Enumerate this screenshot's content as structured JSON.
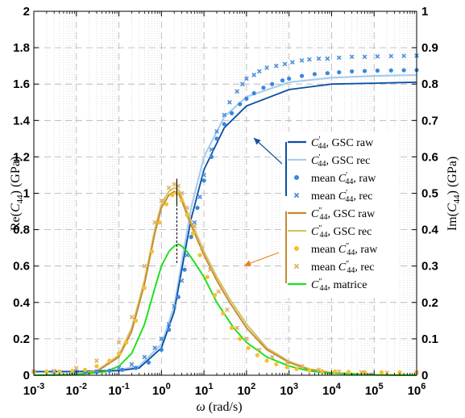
{
  "chart_data": {
    "type": "line",
    "xscale": "log",
    "xlim": [
      0.001,
      1000000
    ],
    "ylim_left": [
      0,
      2
    ],
    "ylim_right": [
      0,
      1
    ],
    "grid": true,
    "xlabel": "ω (rad/s)",
    "ylabel_left": "Re(C44) (GPa)",
    "ylabel_right": "Im(C44) (GPa)",
    "x_tick_labels": [
      "10^-3",
      "10^-2",
      "10^-1",
      "10^0",
      "10^1",
      "10^2",
      "10^3",
      "10^4",
      "10^5",
      "10^6"
    ],
    "y_left_tick_labels": [
      "0",
      "0.2",
      "0.4",
      "0.6",
      "0.8",
      "1",
      "1.2",
      "1.4",
      "1.6",
      "1.8",
      "2"
    ],
    "y_right_tick_labels": [
      "0",
      "0.1",
      "0.2",
      "0.3",
      "0.4",
      "0.5",
      "0.6",
      "0.7",
      "0.8",
      "0.9",
      "1"
    ],
    "legend_position": "right",
    "colors": {
      "storage_raw": "#0b4fa3",
      "storage_rec": "#a9cdf0",
      "storage_mean_raw": "#3a86e0",
      "storage_mean_rec": "#4d8fd8",
      "loss_raw": "#c48a2e",
      "loss_rec": "#d6c36a",
      "loss_mean_raw": "#f2c12e",
      "loss_mean_rec": "#dfb06a",
      "matrice": "#22e01e",
      "arrow_blue": "#1a4f9a",
      "arrow_orange": "#e8821e"
    },
    "series": [
      {
        "key": "storage_raw",
        "name": "C′44, GSC raw",
        "axis": "left",
        "style": "line",
        "x": [
          0.001,
          0.01,
          0.1,
          0.3,
          1,
          2,
          3,
          5,
          10,
          30,
          100,
          1000,
          10000,
          100000,
          1000000
        ],
        "y": [
          0.02,
          0.02,
          0.025,
          0.04,
          0.15,
          0.35,
          0.58,
          0.86,
          1.13,
          1.36,
          1.48,
          1.57,
          1.6,
          1.605,
          1.61
        ]
      },
      {
        "key": "storage_rec",
        "name": "C′44, GSC rec",
        "axis": "left",
        "style": "line",
        "x": [
          0.001,
          0.01,
          0.1,
          0.3,
          1,
          2,
          3,
          5,
          10,
          30,
          100,
          1000,
          10000,
          100000,
          1000000
        ],
        "y": [
          0.02,
          0.02,
          0.03,
          0.05,
          0.17,
          0.38,
          0.62,
          0.92,
          1.2,
          1.42,
          1.53,
          1.61,
          1.635,
          1.645,
          1.65
        ]
      },
      {
        "key": "storage_mean_raw",
        "name": "mean C′44, raw",
        "axis": "left",
        "style": "dot",
        "x": [
          0.001,
          0.002,
          0.004,
          0.008,
          0.016,
          0.03,
          0.06,
          0.12,
          0.25,
          0.5,
          1,
          1.5,
          2.5,
          3.5,
          5,
          7,
          10,
          15,
          20,
          30,
          45,
          70,
          100,
          150,
          250,
          400,
          700,
          1000,
          2000,
          4000,
          8000,
          15000,
          30000,
          60000,
          120000,
          250000,
          500000,
          1000000
        ],
        "y": [
          0.02,
          0.02,
          0.02,
          0.02,
          0.02,
          0.02,
          0.025,
          0.03,
          0.04,
          0.07,
          0.14,
          0.25,
          0.43,
          0.58,
          0.76,
          0.92,
          1.07,
          1.2,
          1.3,
          1.38,
          1.44,
          1.49,
          1.52,
          1.55,
          1.58,
          1.6,
          1.62,
          1.63,
          1.645,
          1.655,
          1.66,
          1.665,
          1.67,
          1.672,
          1.674,
          1.675,
          1.676,
          1.677
        ]
      },
      {
        "key": "storage_mean_rec",
        "name": "mean C′44, rec",
        "axis": "left",
        "style": "cross",
        "x": [
          0.001,
          0.003,
          0.01,
          0.03,
          0.1,
          0.2,
          0.4,
          0.7,
          1,
          1.5,
          2,
          3,
          4,
          6,
          8,
          10,
          15,
          20,
          30,
          40,
          60,
          80,
          100,
          150,
          200,
          300,
          500,
          800,
          1200,
          2000,
          3000,
          5000,
          8000,
          15000,
          30000,
          60000,
          120000,
          250000,
          500000,
          1000000
        ],
        "y": [
          0.02,
          0.02,
          0.02,
          0.02,
          0.04,
          0.06,
          0.1,
          0.15,
          0.2,
          0.28,
          0.38,
          0.52,
          0.66,
          0.84,
          0.98,
          1.1,
          1.24,
          1.34,
          1.43,
          1.5,
          1.56,
          1.6,
          1.63,
          1.65,
          1.67,
          1.69,
          1.7,
          1.71,
          1.72,
          1.73,
          1.735,
          1.74,
          1.74,
          1.745,
          1.75,
          1.75,
          1.752,
          1.754,
          1.755,
          1.756
        ]
      },
      {
        "key": "loss_raw",
        "name": "C″44, GSC raw",
        "axis": "right",
        "style": "line",
        "x": [
          0.001,
          0.01,
          0.03,
          0.1,
          0.2,
          0.4,
          0.7,
          1,
          1.5,
          2,
          2.5,
          3,
          4,
          6,
          10,
          20,
          40,
          100,
          300,
          1000,
          3000,
          10000,
          100000,
          1000000
        ],
        "y": [
          0,
          0.002,
          0.01,
          0.05,
          0.12,
          0.25,
          0.39,
          0.46,
          0.495,
          0.505,
          0.5,
          0.48,
          0.44,
          0.39,
          0.33,
          0.26,
          0.2,
          0.13,
          0.07,
          0.035,
          0.015,
          0.006,
          0.001,
          0
        ]
      },
      {
        "key": "loss_rec",
        "name": "C″44, GSC rec",
        "axis": "right",
        "style": "line",
        "x": [
          0.001,
          0.01,
          0.03,
          0.1,
          0.2,
          0.4,
          0.7,
          1,
          1.5,
          2,
          2.5,
          3,
          4,
          6,
          10,
          20,
          40,
          100,
          300,
          1000,
          3000,
          10000,
          100000,
          1000000
        ],
        "y": [
          0,
          0.002,
          0.012,
          0.055,
          0.13,
          0.26,
          0.4,
          0.47,
          0.505,
          0.515,
          0.51,
          0.49,
          0.45,
          0.4,
          0.34,
          0.27,
          0.21,
          0.14,
          0.075,
          0.038,
          0.017,
          0.007,
          0.001,
          0
        ]
      },
      {
        "key": "loss_mean_raw",
        "name": "mean C″44, raw",
        "axis": "right",
        "style": "dot",
        "x": [
          0.001,
          0.002,
          0.004,
          0.008,
          0.016,
          0.03,
          0.06,
          0.1,
          0.15,
          0.25,
          0.4,
          0.6,
          0.9,
          1.3,
          1.8,
          2.3,
          3,
          4,
          5.5,
          8,
          12,
          18,
          28,
          45,
          70,
          110,
          180,
          300,
          500,
          900,
          1500,
          3000,
          6000,
          12000,
          25000,
          60000,
          150000,
          400000,
          1000000
        ],
        "y": [
          0.01,
          0.01,
          0.01,
          0.012,
          0.015,
          0.025,
          0.04,
          0.06,
          0.09,
          0.15,
          0.24,
          0.34,
          0.42,
          0.47,
          0.495,
          0.5,
          0.48,
          0.44,
          0.39,
          0.33,
          0.27,
          0.22,
          0.17,
          0.13,
          0.1,
          0.075,
          0.055,
          0.04,
          0.03,
          0.022,
          0.017,
          0.013,
          0.011,
          0.01,
          0.009,
          0.008,
          0.008,
          0.008,
          0.008
        ]
      },
      {
        "key": "loss_mean_rec",
        "name": "mean C″44, rec",
        "axis": "right",
        "style": "cross",
        "x": [
          0.001,
          0.003,
          0.01,
          0.03,
          0.1,
          0.2,
          0.4,
          0.7,
          1,
          1.5,
          2,
          2.5,
          3,
          4,
          6,
          9,
          14,
          22,
          35,
          60,
          100,
          200,
          400,
          900,
          2000,
          5000,
          15000,
          50000,
          200000,
          1000000
        ],
        "y": [
          0.01,
          0.012,
          0.02,
          0.04,
          0.09,
          0.16,
          0.3,
          0.42,
          0.48,
          0.515,
          0.525,
          0.52,
          0.5,
          0.46,
          0.41,
          0.35,
          0.29,
          0.23,
          0.18,
          0.13,
          0.1,
          0.07,
          0.05,
          0.035,
          0.025,
          0.015,
          0.01,
          0.008,
          0.007,
          0.007
        ]
      },
      {
        "key": "matrice",
        "name": "C″44, matrice",
        "axis": "right",
        "style": "line",
        "x": [
          0.001,
          0.01,
          0.05,
          0.1,
          0.2,
          0.4,
          0.7,
          1,
          1.5,
          2,
          2.5,
          3,
          4,
          6,
          10,
          20,
          50,
          100,
          300,
          1000,
          3000,
          10000,
          100000,
          1000000
        ],
        "y": [
          0,
          0.001,
          0.01,
          0.025,
          0.06,
          0.14,
          0.24,
          0.3,
          0.34,
          0.355,
          0.36,
          0.355,
          0.34,
          0.31,
          0.27,
          0.2,
          0.13,
          0.09,
          0.05,
          0.025,
          0.012,
          0.005,
          0.001,
          0
        ]
      }
    ],
    "legend": [
      {
        "key": "storage_raw",
        "style": "line",
        "text_main": "C",
        "text_sup": "′",
        "text_sub": "44",
        "text_rest": ", GSC raw",
        "prefix": ""
      },
      {
        "key": "storage_rec",
        "style": "line",
        "text_main": "C",
        "text_sup": "′",
        "text_sub": "44",
        "text_rest": ", GSC rec",
        "prefix": ""
      },
      {
        "key": "storage_mean_raw",
        "style": "dot",
        "text_main": "C",
        "text_sup": "′",
        "text_sub": "44",
        "text_rest": ", raw",
        "prefix": "mean "
      },
      {
        "key": "storage_mean_rec",
        "style": "cross",
        "text_main": "C",
        "text_sup": "′",
        "text_sub": "44",
        "text_rest": ", rec",
        "prefix": "mean "
      },
      {
        "key": "loss_raw",
        "style": "line",
        "text_main": "C",
        "text_sup": "″",
        "text_sub": "44",
        "text_rest": ", GSC raw",
        "prefix": ""
      },
      {
        "key": "loss_rec",
        "style": "line",
        "text_main": "C",
        "text_sup": "″",
        "text_sub": "44",
        "text_rest": ", GSC rec",
        "prefix": ""
      },
      {
        "key": "loss_mean_raw",
        "style": "dot",
        "text_main": "C",
        "text_sup": "″",
        "text_sub": "44",
        "text_rest": ", raw",
        "prefix": "mean "
      },
      {
        "key": "loss_mean_rec",
        "style": "cross",
        "text_main": "C",
        "text_sup": "″",
        "text_sub": "44",
        "text_rest": ", rec",
        "prefix": "mean "
      },
      {
        "key": "matrice",
        "style": "line",
        "text_main": "C",
        "text_sup": "″",
        "text_sub": "44",
        "text_rest": ", matrice",
        "prefix": ""
      }
    ],
    "peak_marker_x": 2.3
  }
}
